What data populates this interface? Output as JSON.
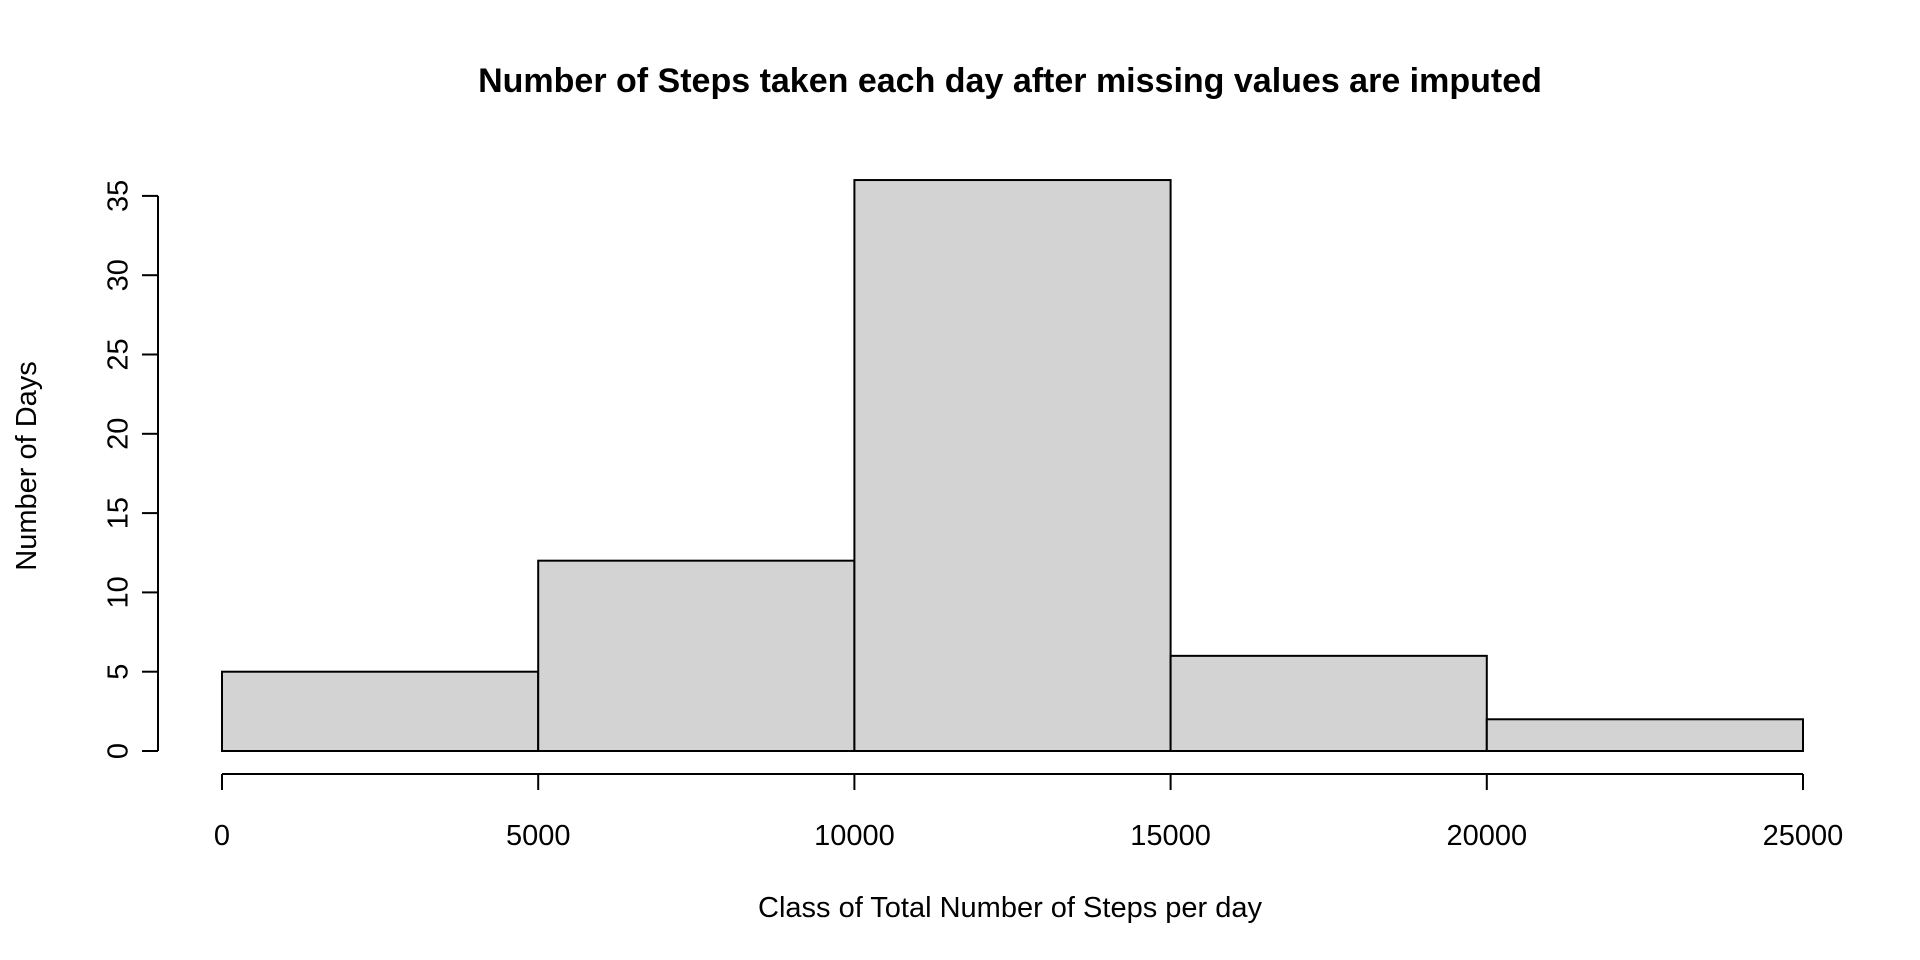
{
  "chart_data": {
    "type": "histogram",
    "title": "Number of Steps taken each day after missing values are imputed",
    "xlabel": "Class of Total Number of Steps per day",
    "ylabel": "Number of Days",
    "bins": [
      {
        "start": 0,
        "end": 5000,
        "count": 5
      },
      {
        "start": 5000,
        "end": 10000,
        "count": 12
      },
      {
        "start": 10000,
        "end": 15000,
        "count": 36
      },
      {
        "start": 15000,
        "end": 20000,
        "count": 6
      },
      {
        "start": 20000,
        "end": 25000,
        "count": 2
      }
    ],
    "xlim": [
      0,
      25000
    ],
    "ylim": [
      0,
      36
    ],
    "xticks": [
      0,
      5000,
      10000,
      15000,
      20000,
      25000
    ],
    "yticks": [
      0,
      5,
      10,
      15,
      20,
      25,
      30,
      35
    ],
    "bar_fill": "#d3d3d3",
    "bar_stroke": "#000000",
    "grid": false,
    "legend": "none"
  }
}
